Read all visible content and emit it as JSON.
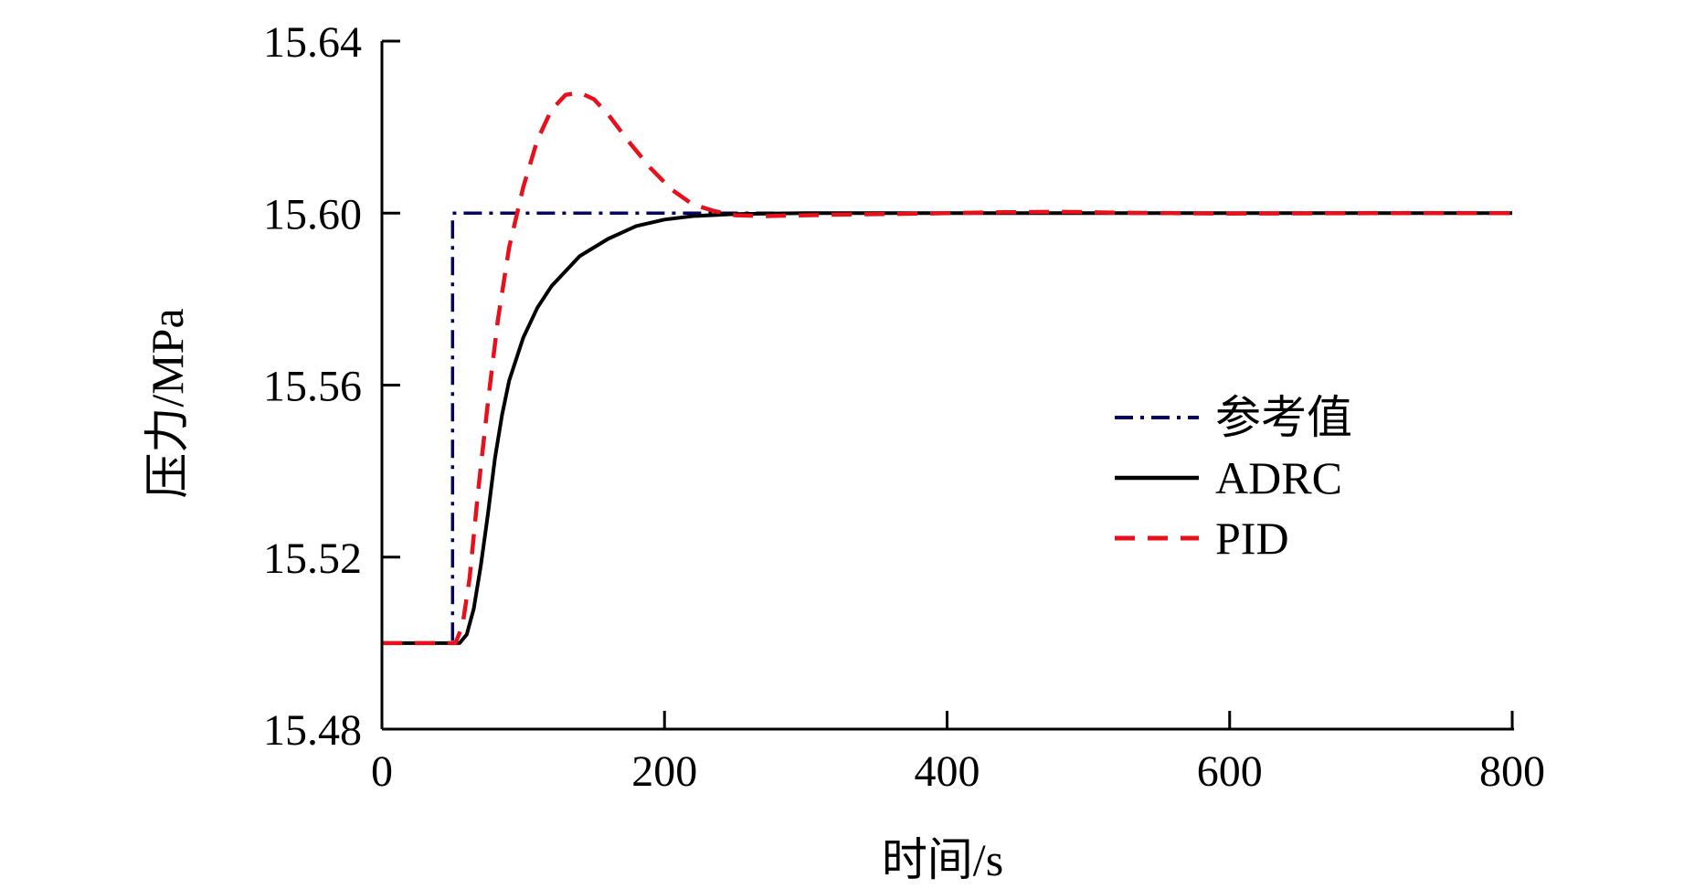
{
  "chart_data": {
    "type": "line",
    "title": "",
    "xlabel": "时间/s",
    "ylabel": "压力/MPa",
    "xlim": [
      0,
      800
    ],
    "ylim": [
      15.48,
      15.64
    ],
    "x_ticks": [
      0,
      200,
      400,
      600,
      800
    ],
    "y_ticks": [
      15.48,
      15.52,
      15.56,
      15.6,
      15.64
    ],
    "x_tick_labels": [
      "0",
      "200",
      "400",
      "600",
      "800"
    ],
    "y_tick_labels": [
      "15.48",
      "15.52",
      "15.56",
      "15.60",
      "15.64"
    ],
    "grid": false,
    "legend_position": "right",
    "series": [
      {
        "name": "参考值",
        "style": "dash-dot",
        "color": "#000066",
        "points": [
          [
            0,
            15.5
          ],
          [
            50,
            15.5
          ],
          [
            50,
            15.6
          ],
          [
            800,
            15.6
          ]
        ]
      },
      {
        "name": "ADRC",
        "style": "solid",
        "color": "#000000",
        "points": [
          [
            0,
            15.5
          ],
          [
            55,
            15.5
          ],
          [
            60,
            15.502
          ],
          [
            65,
            15.508
          ],
          [
            70,
            15.518
          ],
          [
            75,
            15.53
          ],
          [
            80,
            15.543
          ],
          [
            85,
            15.553
          ],
          [
            90,
            15.561
          ],
          [
            100,
            15.571
          ],
          [
            110,
            15.578
          ],
          [
            120,
            15.583
          ],
          [
            140,
            15.59
          ],
          [
            160,
            15.594
          ],
          [
            180,
            15.597
          ],
          [
            200,
            15.5985
          ],
          [
            220,
            15.5993
          ],
          [
            250,
            15.5998
          ],
          [
            300,
            15.6
          ],
          [
            800,
            15.6
          ]
        ]
      },
      {
        "name": "PID",
        "style": "dashed",
        "color": "#e8101a",
        "points": [
          [
            0,
            15.5
          ],
          [
            52,
            15.5
          ],
          [
            57,
            15.504
          ],
          [
            62,
            15.515
          ],
          [
            68,
            15.535
          ],
          [
            75,
            15.556
          ],
          [
            82,
            15.575
          ],
          [
            90,
            15.592
          ],
          [
            100,
            15.606
          ],
          [
            110,
            15.617
          ],
          [
            120,
            15.624
          ],
          [
            130,
            15.6275
          ],
          [
            140,
            15.628
          ],
          [
            150,
            15.6265
          ],
          [
            160,
            15.623
          ],
          [
            175,
            15.6165
          ],
          [
            190,
            15.6105
          ],
          [
            205,
            15.6055
          ],
          [
            220,
            15.602
          ],
          [
            235,
            15.6005
          ],
          [
            250,
            15.5995
          ],
          [
            270,
            15.5993
          ],
          [
            300,
            15.5995
          ],
          [
            330,
            15.5997
          ],
          [
            360,
            15.5998
          ],
          [
            400,
            15.6
          ],
          [
            440,
            15.6002
          ],
          [
            480,
            15.6003
          ],
          [
            520,
            15.6001
          ],
          [
            560,
            15.6
          ],
          [
            600,
            15.5999
          ],
          [
            700,
            15.6
          ],
          [
            800,
            15.6
          ]
        ]
      }
    ]
  }
}
